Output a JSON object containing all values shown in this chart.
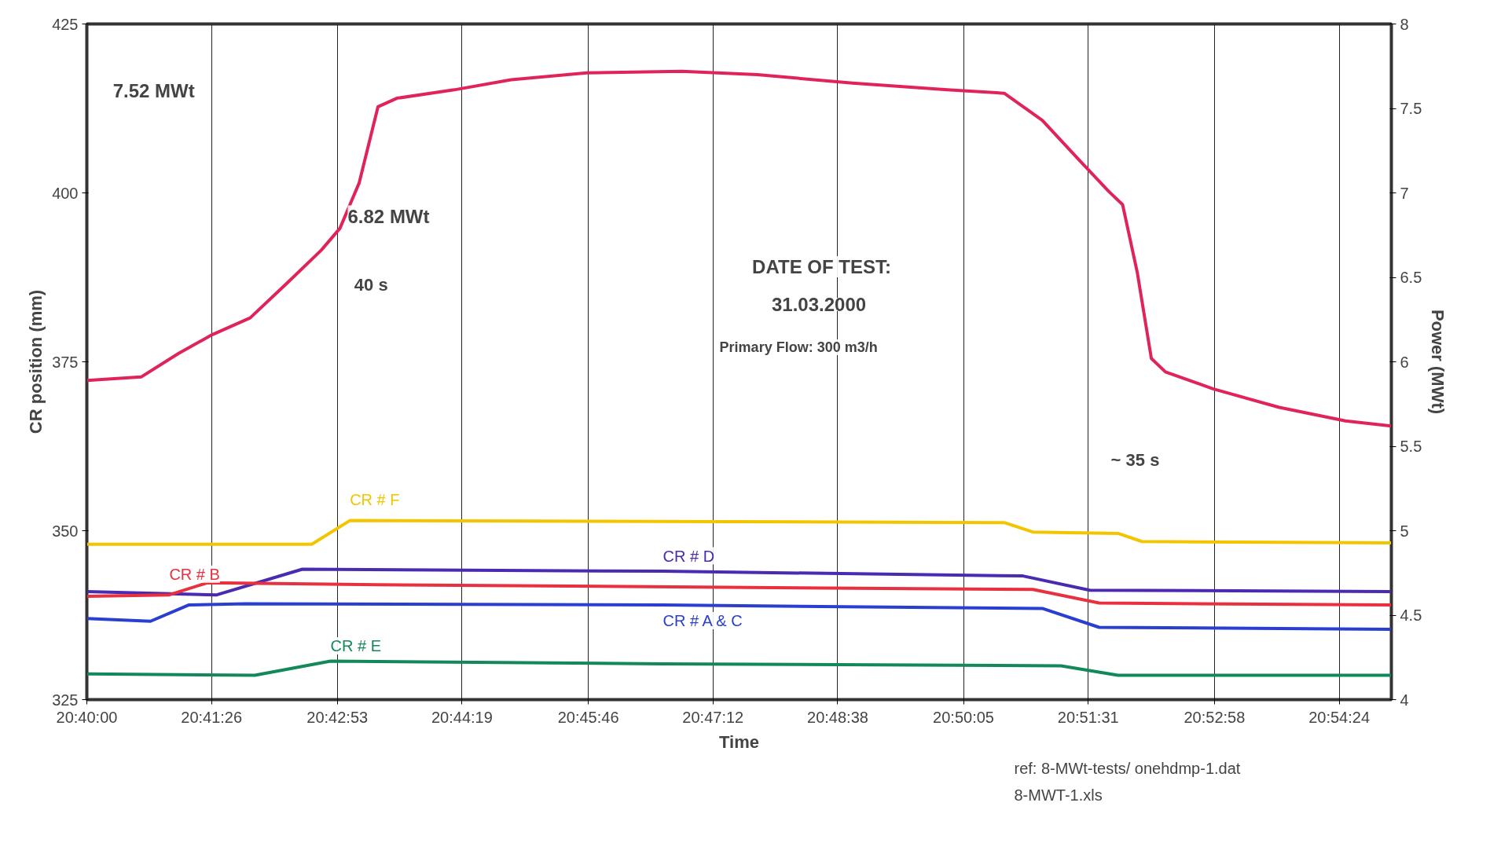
{
  "chart_data": {
    "type": "line",
    "xlabel": "Time",
    "ylabel": "CR position (mm)",
    "y2label": "Power (MWt)",
    "xlim": [
      20.6667,
      20.9167
    ],
    "ylim": [
      325,
      425
    ],
    "y2lim": [
      4,
      8
    ],
    "xticks": [
      {
        "value": 20.6667,
        "label": "20:40:00"
      },
      {
        "value": 20.6906,
        "label": "20:41:26"
      },
      {
        "value": 20.7147,
        "label": "20:42:53"
      },
      {
        "value": 20.7386,
        "label": "20:44:19"
      },
      {
        "value": 20.7628,
        "label": "20:45:46"
      },
      {
        "value": 20.7867,
        "label": "20:47:12"
      },
      {
        "value": 20.8106,
        "label": "20:48:38"
      },
      {
        "value": 20.8347,
        "label": "20:50:05"
      },
      {
        "value": 20.8586,
        "label": "20:51:31"
      },
      {
        "value": 20.8828,
        "label": "20:52:58"
      },
      {
        "value": 20.9067,
        "label": "20:54:24"
      }
    ],
    "yticks": [
      325,
      350,
      375,
      400,
      425
    ],
    "y2ticks": [
      4,
      4.5,
      5,
      5.5,
      6,
      6.5,
      7,
      7.5,
      8
    ],
    "grid": "x",
    "legend": false,
    "series": [
      {
        "color": "#e0245a",
        "axis": "y2",
        "x": [
          20.6667,
          20.6771,
          20.6843,
          20.6907,
          20.698,
          20.7052,
          20.7116,
          20.7152,
          20.7189,
          20.7225,
          20.7261,
          20.7371,
          20.748,
          20.7625,
          20.7807,
          20.7952,
          20.8134,
          20.8316,
          20.8425,
          20.8498,
          20.857,
          20.8625,
          20.8652,
          20.868,
          20.8707,
          20.8734,
          20.8825,
          20.8952,
          20.9079,
          20.9167
        ],
        "values": [
          5.89,
          5.91,
          6.05,
          6.16,
          6.26,
          6.47,
          6.66,
          6.79,
          7.06,
          7.51,
          7.56,
          7.61,
          7.67,
          7.71,
          7.72,
          7.7,
          7.65,
          7.61,
          7.59,
          7.43,
          7.19,
          7.01,
          6.93,
          6.53,
          6.02,
          5.94,
          5.84,
          5.73,
          5.65,
          5.62
        ]
      },
      {
        "name": "CR # F",
        "color": "#f2c500",
        "x": [
          20.6667,
          20.7098,
          20.7171,
          20.8425,
          20.848,
          20.8643,
          20.8689,
          20.9167
        ],
        "values": [
          348,
          348,
          351.5,
          351.2,
          349.8,
          349.6,
          348.4,
          348.2
        ]
      },
      {
        "name": "CR # D",
        "color": "#4a2ab0",
        "x": [
          20.6667,
          20.6916,
          20.708,
          20.7771,
          20.8461,
          20.8589,
          20.9167
        ],
        "values": [
          341,
          340.5,
          344.3,
          344,
          343.3,
          341.2,
          341
        ]
      },
      {
        "name": "CR # B",
        "color": "#e8303f",
        "x": [
          20.6667,
          20.6825,
          20.6898,
          20.7225,
          20.848,
          20.8607,
          20.9167
        ],
        "values": [
          340.3,
          340.5,
          342.3,
          342,
          341.3,
          339.3,
          339
        ]
      },
      {
        "name": "CR # A & C",
        "color": "#2a3fd0",
        "x": [
          20.6667,
          20.6789,
          20.6862,
          20.6971,
          20.7771,
          20.8498,
          20.8607,
          20.9167
        ],
        "values": [
          337,
          336.6,
          339,
          339.2,
          339,
          338.5,
          335.7,
          335.4
        ]
      },
      {
        "name": "CR # E",
        "color": "#13885a",
        "x": [
          20.6667,
          20.6989,
          20.7134,
          20.7771,
          20.8534,
          20.8643,
          20.9167
        ],
        "values": [
          328.8,
          328.6,
          330.7,
          330.3,
          330,
          328.6,
          328.6
        ]
      }
    ],
    "annotations": [
      "7.52 MWt",
      "6.82 MWt",
      "40 s",
      "~ 35 s",
      "DATE OF TEST:",
      "31.03.2000",
      "Primary Flow: 300 m3/h",
      "ref: 8-MWt-tests/ onehdmp-1.dat",
      "8-MWT-1.xls"
    ]
  }
}
